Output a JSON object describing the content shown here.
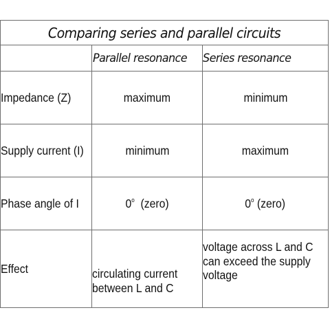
{
  "table": {
    "title": "Comparing series and parallel circuits",
    "headers": {
      "blank": "",
      "parallel": "Parallel resonance",
      "series": "Series resonance"
    },
    "rows": [
      {
        "label": "Impedance (Z)",
        "parallel": "maximum",
        "series": "minimum"
      },
      {
        "label": "Supply current (I)",
        "parallel": "minimum",
        "series": "maximum"
      },
      {
        "label": "Phase angle of I",
        "parallel_num": "0",
        "parallel_sup": "o",
        "parallel_rest": "  (zero)",
        "series_num": "0",
        "series_sup": "o",
        "series_rest": " (zero)"
      },
      {
        "label": "Effect",
        "parallel_lines": [
          "circulating current",
          "between L and C"
        ],
        "series_lines": [
          "voltage across L and C",
          "can exceed the supply",
          "voltage"
        ]
      }
    ]
  }
}
